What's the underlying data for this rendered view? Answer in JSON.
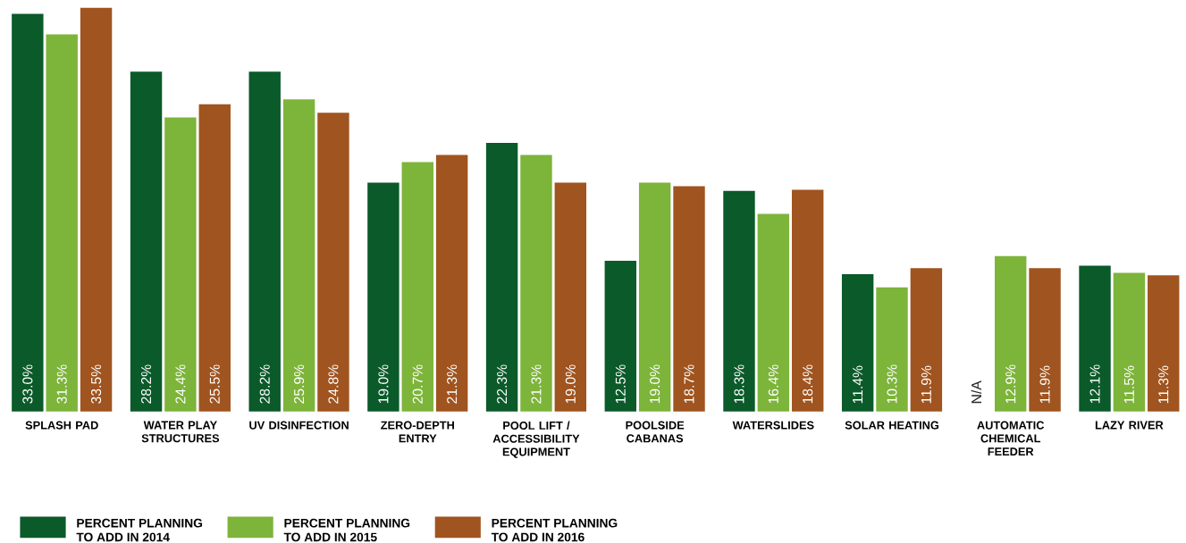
{
  "chart_data": {
    "type": "bar",
    "legend": "bottom left",
    "categories": [
      "SPLASH PAD",
      "WATER PLAY STRUCTURES",
      "UV DISINFECTION",
      "ZERO-DEPTH ENTRY",
      "POOL LIFT / ACCESSIBILITY EQUIPMENT",
      "POOLSIDE CABANAS",
      "WATERSLIDES",
      "SOLAR HEATING",
      "AUTOMATIC CHEMICAL FEEDER",
      "LAZY RIVER"
    ],
    "series": [
      {
        "name": "PERCENT PLANNING TO ADD IN 2014",
        "color": "#0b5a2a",
        "values": [
          33.0,
          28.2,
          28.2,
          19.0,
          22.3,
          12.5,
          18.3,
          11.4,
          null,
          12.1
        ],
        "value_labels": [
          "33.0%",
          "28.2%",
          "28.2%",
          "19.0%",
          "22.3%",
          "12.5%",
          "18.3%",
          "11.4%",
          "N/A",
          "12.1%"
        ]
      },
      {
        "name": "PERCENT PLANNING TO ADD IN 2015",
        "color": "#7db43a",
        "values": [
          31.3,
          24.4,
          25.9,
          20.7,
          21.3,
          19.0,
          16.4,
          10.3,
          12.9,
          11.5
        ],
        "value_labels": [
          "31.3%",
          "24.4%",
          "25.9%",
          "20.7%",
          "21.3%",
          "19.0%",
          "16.4%",
          "10.3%",
          "12.9%",
          "11.5%"
        ]
      },
      {
        "name": "PERCENT PLANNING TO ADD IN 2016",
        "color": "#a0541f",
        "values": [
          33.5,
          25.5,
          24.8,
          21.3,
          19.0,
          18.7,
          18.4,
          11.9,
          11.9,
          11.3
        ],
        "value_labels": [
          "33.5%",
          "25.5%",
          "24.8%",
          "21.3%",
          "19.0%",
          "18.7%",
          "18.4%",
          "11.9%",
          "11.9%",
          "11.3%"
        ]
      }
    ]
  }
}
